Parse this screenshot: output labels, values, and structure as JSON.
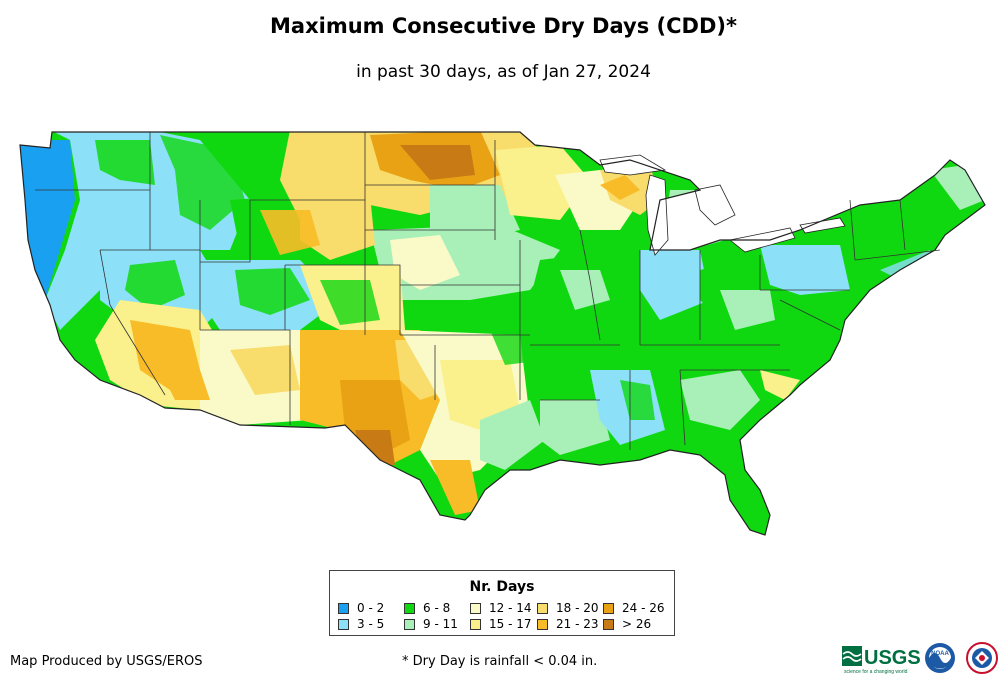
{
  "title": "Maximum Consecutive Dry Days (CDD)*",
  "subtitle": "in past 30 days, as of Jan 27, 2024",
  "legend": {
    "title": "Nr. Days",
    "items": [
      {
        "label": "0 - 2",
        "color": "#1aa0f0"
      },
      {
        "label": "3 - 5",
        "color": "#8ce0f8"
      },
      {
        "label": "6 - 8",
        "color": "#10d810"
      },
      {
        "label": "9 - 11",
        "color": "#a8f0b8"
      },
      {
        "label": "12 - 14",
        "color": "#fafac8"
      },
      {
        "label": "15 - 17",
        "color": "#faf08c"
      },
      {
        "label": "18 - 20",
        "color": "#f8dc6c"
      },
      {
        "label": "21 - 23",
        "color": "#f8bc28"
      },
      {
        "label": "24 - 26",
        "color": "#e8a214"
      },
      {
        "label": "> 26",
        "color": "#c87a14"
      }
    ]
  },
  "credit": "Map Produced by USGS/EROS",
  "footnote": "* Dry Day is rainfall < 0.04 in.",
  "logos": {
    "usgs": "USGS",
    "usgs_tagline": "science for a changing world",
    "noaa": "NOAA"
  }
}
